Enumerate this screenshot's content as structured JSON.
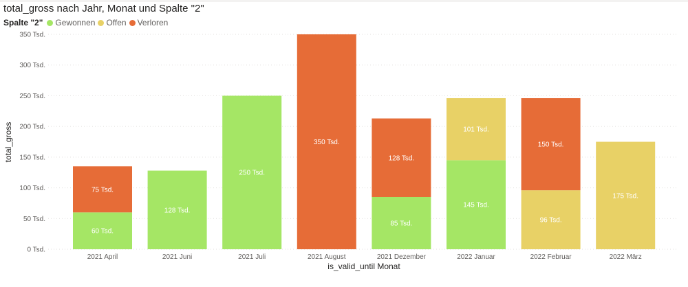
{
  "chart_data": {
    "type": "bar",
    "stacked": true,
    "title": "total_gross nach Jahr, Monat und Spalte \"2\"",
    "xlabel": "is_valid_until Monat",
    "ylabel": "total_gross",
    "ylim": [
      0,
      350
    ],
    "yticks": [
      0,
      50,
      100,
      150,
      200,
      250,
      300,
      350
    ],
    "ytick_labels": [
      "0 Tsd.",
      "50 Tsd.",
      "100 Tsd.",
      "150 Tsd.",
      "200 Tsd.",
      "250 Tsd.",
      "300 Tsd.",
      "350 Tsd."
    ],
    "grid": true,
    "legend_title": "Spalte \"2\"",
    "legend_position": "top-left",
    "categories": [
      "2021 April",
      "2021 Juni",
      "2021 Juli",
      "2021 August",
      "2021 Dezember",
      "2022 Januar",
      "2022 Februar",
      "2022 März"
    ],
    "series": [
      {
        "name": "Gewonnen",
        "color": "#A5E665",
        "values": [
          60,
          128,
          250,
          0,
          85,
          145,
          0,
          0
        ],
        "labels": [
          "60 Tsd.",
          "128 Tsd.",
          "250 Tsd.",
          "",
          "85 Tsd.",
          "145 Tsd.",
          "",
          ""
        ]
      },
      {
        "name": "Offen",
        "color": "#E8D166",
        "values": [
          0,
          0,
          0,
          0,
          0,
          101,
          96,
          175
        ],
        "labels": [
          "",
          "",
          "",
          "",
          "",
          "101 Tsd.",
          "96 Tsd.",
          "175 Tsd."
        ]
      },
      {
        "name": "Verloren",
        "color": "#E66C37",
        "values": [
          75,
          0,
          0,
          350,
          128,
          0,
          150,
          0
        ],
        "labels": [
          "75 Tsd.",
          "",
          "",
          "350 Tsd.",
          "128 Tsd.",
          "",
          "150 Tsd.",
          ""
        ]
      }
    ]
  }
}
